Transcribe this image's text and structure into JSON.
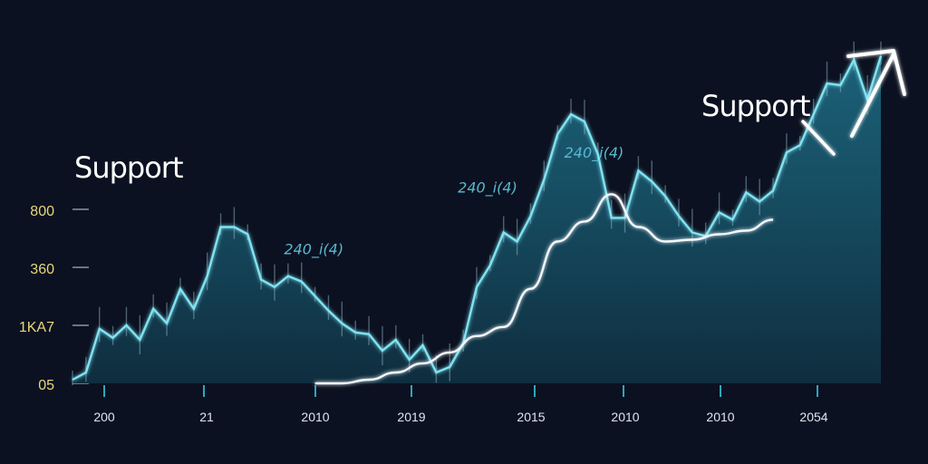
{
  "colors": {
    "background": "#0b1120",
    "area_fill": "#14485c",
    "price_line": "#7fe3f2",
    "support_line": "#f3f7fb",
    "baseline": "#3ad8ee",
    "y_tick": "#e8d87a",
    "annotation": "#5ab8d0"
  },
  "labels": {
    "support_left": "Support",
    "support_right": "Support"
  },
  "annotations": [
    {
      "text": "240_i(4)",
      "x": 15.7,
      "y": 710
    },
    {
      "text": "240_i(4)",
      "x": 28.6,
      "y": 1050
    },
    {
      "text": "240_i(4)",
      "x": 36.5,
      "y": 1240
    }
  ],
  "icons": {
    "trend_arrow": "up-right-arrow-icon"
  },
  "chart_data": {
    "type": "area",
    "x_ticks": [
      "200",
      "21",
      "2010",
      "2019",
      "2015",
      "2010",
      "2010",
      "2054"
    ],
    "y_ticks": [
      "05",
      "1KA7",
      "360",
      "800"
    ],
    "ylim": [
      0,
      1600
    ],
    "xlim": [
      0,
      60
    ],
    "grid": false,
    "legend": "none",
    "series": [
      {
        "x": [
          0,
          1,
          2,
          3,
          4,
          5,
          6,
          7,
          8,
          9,
          10,
          11,
          12,
          13,
          14,
          15,
          16,
          17,
          18,
          19,
          20,
          21,
          22,
          23,
          24,
          25,
          26,
          27,
          28,
          29,
          30,
          31,
          32,
          33,
          34,
          35,
          36,
          37,
          38,
          39,
          40,
          41,
          42,
          43,
          44,
          45,
          46,
          47,
          48,
          49,
          50,
          51,
          52,
          53,
          54,
          55,
          56,
          57,
          58,
          59,
          60
        ],
        "values": [
          20,
          60,
          300,
          250,
          320,
          240,
          410,
          330,
          520,
          410,
          590,
          860,
          860,
          820,
          570,
          530,
          590,
          560,
          480,
          400,
          330,
          280,
          270,
          180,
          240,
          130,
          210,
          60,
          90,
          220,
          530,
          650,
          830,
          780,
          920,
          1120,
          1370,
          1480,
          1440,
          1260,
          910,
          910,
          1170,
          1110,
          1030,
          920,
          830,
          810,
          940,
          900,
          1050,
          1000,
          1060,
          1270,
          1310,
          1480,
          1650,
          1640,
          1780,
          1560,
          1800
        ]
      },
      {
        "x": [
          18,
          20,
          22,
          24,
          26,
          28,
          30,
          32,
          34,
          36,
          38,
          40,
          42,
          44,
          46,
          48,
          50,
          52
        ],
        "values": [
          0,
          0,
          20,
          60,
          110,
          170,
          260,
          310,
          520,
          780,
          890,
          1040,
          860,
          780,
          790,
          820,
          840,
          900
        ]
      }
    ]
  }
}
